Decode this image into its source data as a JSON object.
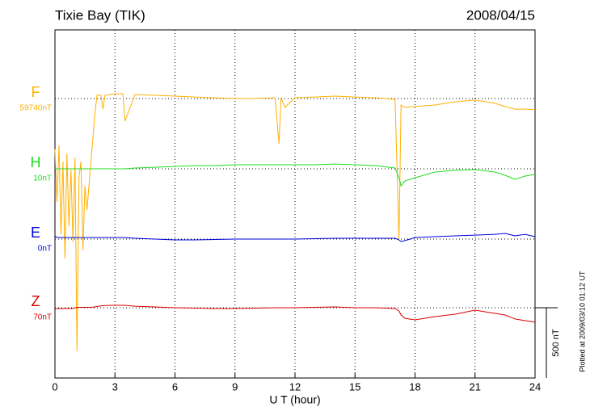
{
  "chart_data": {
    "type": "line",
    "title": "Tixie Bay (TIK)",
    "date": "2008/04/15",
    "x_label": "U T (hour)",
    "plot_note": "Plotted at 2009/03/10 01:12 UT",
    "scale_bar": {
      "value": 500,
      "label": "500 nT"
    },
    "xlim": [
      0,
      24
    ],
    "xticks": [
      0,
      3,
      6,
      9,
      12,
      15,
      18,
      21,
      24
    ],
    "grid": true,
    "x": [
      0,
      0.1,
      0.2,
      0.3,
      0.4,
      0.5,
      0.6,
      0.7,
      0.8,
      0.9,
      1.0,
      1.1,
      1.2,
      1.3,
      1.4,
      1.5,
      1.6,
      1.8,
      2.0,
      2.1,
      2.2,
      2.3,
      2.4,
      2.5,
      3,
      3.4,
      3.5,
      4,
      5,
      6,
      7,
      8,
      9,
      10,
      11,
      11.2,
      11.3,
      11.5,
      12,
      13,
      14,
      15,
      16,
      17,
      17.2,
      17.3,
      17.5,
      18,
      19,
      20,
      21,
      22,
      22.5,
      23,
      23.5,
      24
    ],
    "series": [
      {
        "name": "F",
        "color": "#ffb000",
        "baseline": {
          "value": 59740,
          "label": "59740nT"
        },
        "values": [
          59378,
          59004,
          59407,
          58774,
          59292,
          58602,
          59349,
          58832,
          59234,
          58717,
          59320,
          57941,
          59177,
          59292,
          58660,
          59119,
          58947,
          59292,
          59637,
          59763,
          59763,
          59763,
          59665,
          59763,
          59774,
          59774,
          59579,
          59769,
          59763,
          59757,
          59751,
          59745,
          59740,
          59740,
          59746,
          59418,
          59746,
          59677,
          59746,
          59751,
          59757,
          59751,
          59746,
          59734,
          58740,
          59694,
          59677,
          59683,
          59694,
          59717,
          59729,
          59706,
          59683,
          59665,
          59665,
          59660
        ]
      },
      {
        "name": "H",
        "color": "#22dd22",
        "baseline": {
          "value": 10,
          "label": "10nT"
        },
        "values": [
          10,
          10,
          10,
          10,
          10,
          10,
          10,
          10,
          10,
          10,
          10,
          10,
          10,
          10,
          10,
          10,
          10,
          10,
          10,
          10,
          10,
          10,
          10,
          10,
          10,
          10,
          10,
          16,
          21,
          27,
          33,
          33,
          39,
          39,
          39,
          39,
          39,
          39,
          39,
          39,
          44,
          39,
          33,
          16,
          -53,
          -111,
          -76,
          -53,
          -13,
          -1,
          4,
          -13,
          -36,
          -65,
          -42,
          -30
        ]
      },
      {
        "name": "E",
        "color": "#0000dd",
        "baseline": {
          "value": 0,
          "label": "0nT"
        },
        "values": [
          23,
          11,
          11,
          11,
          11,
          11,
          11,
          11,
          11,
          11,
          11,
          11,
          11,
          11,
          11,
          11,
          11,
          11,
          11,
          11,
          11,
          11,
          11,
          11,
          11,
          11,
          11,
          6,
          0,
          -6,
          -6,
          -3,
          0,
          0,
          0,
          0,
          0,
          0,
          0,
          3,
          6,
          6,
          6,
          6,
          -6,
          -17,
          -11,
          11,
          17,
          23,
          28,
          34,
          40,
          23,
          34,
          17
        ]
      },
      {
        "name": "Z",
        "color": "#dd0000",
        "baseline": {
          "value": 70,
          "label": "70nT"
        },
        "values": [
          59,
          64,
          64,
          64,
          64,
          64,
          64,
          64,
          64,
          64,
          70,
          73,
          73,
          73,
          73,
          73,
          73,
          73,
          76,
          79,
          81,
          84,
          85,
          86,
          87,
          87,
          87,
          81,
          76,
          70,
          67,
          64,
          64,
          67,
          70,
          70,
          70,
          70,
          70,
          73,
          76,
          70,
          70,
          64,
          47,
          18,
          -5,
          -16,
          7,
          24,
          53,
          30,
          18,
          -10,
          -22,
          -33
        ]
      }
    ]
  }
}
